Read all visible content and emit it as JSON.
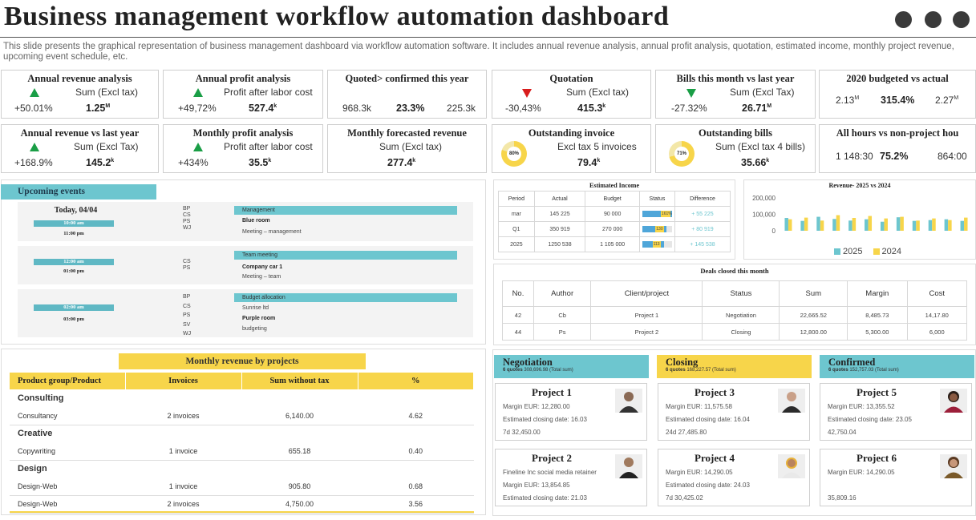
{
  "page": {
    "title": "Business management workflow automation dashboard",
    "subtitle": "This slide presents the graphical representation of business management dashboard via workflow automation software. It includes annual revenue analysis, annual profit analysis, quotation, estimated income, monthly project revenue, upcoming event schedule, etc."
  },
  "kpis": {
    "annual_revenue": {
      "title": "Annual revenue analysis",
      "sub": "Sum (Excl tax)",
      "change": "+50.01%",
      "value": "1.25",
      "unit": "M"
    },
    "annual_profit": {
      "title": "Annual profit analysis",
      "sub": "Profit after labor cost",
      "change": "+49,72%",
      "value": "527.4",
      "unit": "k"
    },
    "quoted_confirmed": {
      "title": "Quoted> confirmed this year",
      "left": "968.3k",
      "mid": "23.3%",
      "right": "225.3k"
    },
    "quotation": {
      "title": "Quotation",
      "sub": "Sum (Excl tax)",
      "change": "-30,43%",
      "value": "415.3",
      "unit": "k"
    },
    "bills": {
      "title": "Bills this month vs last year",
      "sub": "Sum (Excl Tax)",
      "change": "-27.32%",
      "value": "26.71",
      "unit": "M"
    },
    "budgeted": {
      "title": "2020 budgeted vs actual",
      "left": "2.13",
      "left_unit": "M",
      "mid": "315.4%",
      "right": "2.27",
      "right_unit": "M"
    },
    "revenue_last_year": {
      "title": "Annual revenue vs last year",
      "sub": "Sum (Excl Tax)",
      "change": "+168.9%",
      "value": "145.2",
      "unit": "k"
    },
    "monthly_profit": {
      "title": "Monthly profit analysis",
      "sub": "Profit after labor cost",
      "change": "+434%",
      "value": "35.5",
      "unit": "k"
    },
    "forecast": {
      "title": "Monthly forecasted revenue",
      "sub": "Sum (Excl tax)",
      "value": "277.4",
      "unit": "k"
    },
    "outstanding_invoice": {
      "title": "Outstanding invoice",
      "sub": "Excl tax 5 invoices",
      "value": "79.4",
      "unit": "k",
      "pct_label": "80%",
      "pct": 0.8
    },
    "outstanding_bills": {
      "title": "Outstanding bills",
      "sub": "Sum (Excl tax 4 bills)",
      "value": "35.66",
      "unit": "k",
      "pct_label": "71%",
      "pct": 0.71
    },
    "hours": {
      "title": "All hours vs non-project hou",
      "left": "1 148:30",
      "mid": "75.2%",
      "right": "864:00"
    }
  },
  "events": {
    "header": "Upcoming events",
    "date": "Today, 04/04",
    "items": [
      {
        "start": "10:00 am",
        "end": "11:00 pm",
        "codes": "BP\nCS\nPS\nWJ",
        "category": "Management",
        "line1": "Blue room",
        "line2": "Meeting – management"
      },
      {
        "start": "12:00 am",
        "end": "01:00 pm",
        "codes": "CS\nPS",
        "category": "Team meeting",
        "line1": "Company  car 1",
        "line2": "Meeting – team"
      },
      {
        "start": "02:00 am",
        "end": "03:00 pm",
        "codes": "BP\nCS\nPS\nSV\nWJ",
        "category": "Budget  allocation",
        "line0": "Sunrise ltd",
        "line1": "Purple room",
        "line2": "budgeting"
      }
    ]
  },
  "income": {
    "title": "Estimated Income",
    "headers": [
      "Period",
      "Actual",
      "Budget",
      "Status",
      "Difference"
    ],
    "rows": [
      {
        "period": "mar",
        "actual": "145  225",
        "budget": "90 000",
        "status_label": "161%",
        "status": 1.0,
        "difference": "+ 55  225"
      },
      {
        "period": "Q1",
        "actual": "350  919",
        "budget": "270  000",
        "status_label": "130",
        "status": 0.82,
        "difference": "+ 80 919"
      },
      {
        "period": "2025",
        "actual": "1250  538",
        "budget": "1 105 000",
        "status_label": "113",
        "status": 0.72,
        "difference": "+ 145 538"
      }
    ]
  },
  "chart_data": {
    "type": "bar",
    "title": "Revenue- 2025 vs 2024",
    "ylim": [
      0,
      200000
    ],
    "yticks": [
      "200,000",
      "100,000",
      "0"
    ],
    "series": [
      {
        "name": "2025",
        "color": "#6dc6cf",
        "values": [
          78000,
          60000,
          85000,
          72000,
          62000,
          70000,
          55000,
          82000,
          60000,
          65000,
          70000,
          60000
        ]
      },
      {
        "name": "2024",
        "color": "#f7d54a",
        "values": [
          70000,
          80000,
          62000,
          95000,
          78000,
          90000,
          75000,
          85000,
          62000,
          75000,
          65000,
          80000
        ]
      }
    ],
    "legend_position": "bottom"
  },
  "deals": {
    "title": "Deals closed this month",
    "headers": [
      "No.",
      "Author",
      "Client/project",
      "Status",
      "Sum",
      "Margin",
      "Cost"
    ],
    "rows": [
      [
        "42",
        "Cb",
        "Project 1",
        "Negotiation",
        "22,665.52",
        "8,485.73",
        "14,17.80"
      ],
      [
        "44",
        "Ps",
        "Project 2",
        "Closing",
        "12,800.00",
        "5,300.00",
        "6,000"
      ]
    ]
  },
  "monthly_revenue": {
    "title": "Monthly revenue by projects",
    "headers": [
      "Product group/Product",
      "Invoices",
      "Sum without tax",
      "%"
    ],
    "groups": [
      {
        "name": "Consulting",
        "rows": [
          [
            "Consultancy",
            "2 invoices",
            "6,140.00",
            "4.62"
          ]
        ]
      },
      {
        "name": "Creative",
        "rows": [
          [
            "Copywriting",
            "1 invoice",
            "655.18",
            "0.40"
          ]
        ]
      },
      {
        "name": "Design",
        "rows": [
          [
            "Design-Web",
            "1 invoice",
            "905.80",
            "0.68"
          ],
          [
            "Design-Web",
            "2 invoices",
            "4,750.00",
            "3.56"
          ]
        ]
      }
    ]
  },
  "pipeline": {
    "stages": [
      {
        "name": "Negotiation",
        "quotes": "6 quotes",
        "sum": "308,696.98",
        "note": "(Total sum)",
        "color": "#6dc6cf",
        "projects": [
          {
            "title": "Project 1",
            "lines": [
              "Margin EUR: 12,280.00",
              "Estimated closing date: 16.03",
              "7d 32,450.00"
            ]
          },
          {
            "title": "Project 2",
            "lines": [
              "Fineline Inc social media retainer",
              "Margin EUR: 13,854.85",
              "Estimated closing date: 21.03"
            ]
          }
        ]
      },
      {
        "name": "Closing",
        "quotes": "6 quotes",
        "sum": "168,227.57",
        "note": "(Total sum)",
        "color": "#f7d54a",
        "projects": [
          {
            "title": "Project 3",
            "lines": [
              "Margin EUR: 11,575.58",
              "Estimated closing date: 16.04",
              "24d 27,485.80"
            ]
          },
          {
            "title": "Project 4",
            "lines": [
              "Margin EUR: 14,290.05",
              "Estimated closing date: 24.03",
              "7d 30,425.02"
            ]
          }
        ]
      },
      {
        "name": "Confirmed",
        "quotes": "6 quotes",
        "sum": "152,757.03",
        "note": "(Total sum)",
        "color": "#6dc6cf",
        "projects": [
          {
            "title": "Project 5",
            "lines": [
              "Margin EUR: 13,355.52",
              "Estimated closing date: 23.05",
              "42,750.04"
            ]
          },
          {
            "title": "Project 6",
            "lines": [
              "Margin EUR: 14,290.05",
              "",
              "35,809.16"
            ]
          }
        ]
      }
    ]
  }
}
